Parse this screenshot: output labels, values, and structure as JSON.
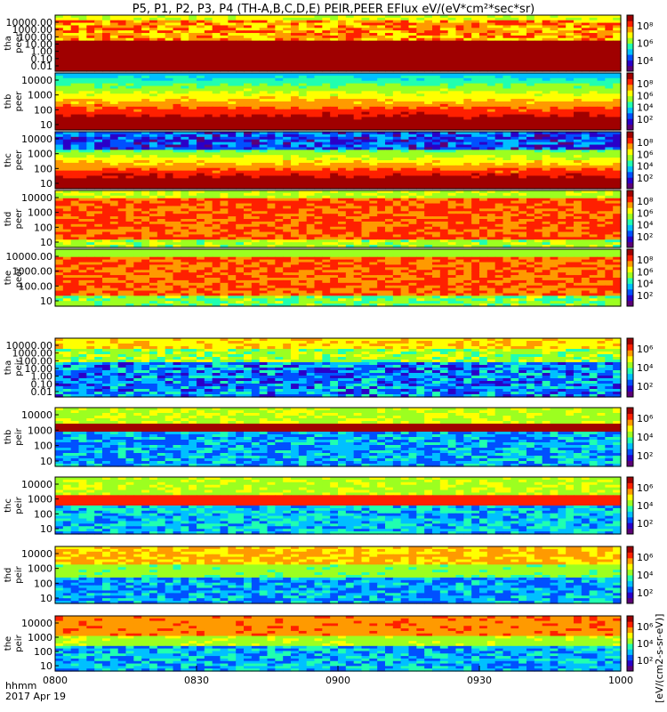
{
  "title": "P5, P1, P2, P3, P4 (TH-A,B,C,D,E) PEIR,PEER EFlux eV/(eV*cm²*sec*sr)",
  "footer": {
    "x_caption_line1": "hhmm",
    "x_caption_line2": "2017 Apr 19"
  },
  "colorbar_unit": "[eV/(cm2-s-sr-eV)]",
  "chart_data": {
    "type": "heatmap",
    "x_axis": {
      "range": [
        "0800",
        "1000"
      ],
      "tick_labels": [
        "0800",
        "0830",
        "0900",
        "0930",
        "1000"
      ]
    },
    "colormap": [
      "#5b0077",
      "#2a00c8",
      "#0050ff",
      "#00c0ff",
      "#20ffb0",
      "#9cff20",
      "#ffff00",
      "#ff9a00",
      "#ff2000",
      "#a00000"
    ],
    "panels": [
      {
        "ylabel": "tha peer",
        "yticks": [
          "10000.00",
          "1000.00",
          "100.00",
          "10.00",
          "1.00",
          "0.10",
          "0.01"
        ],
        "cbar_ticks": [
          "10⁸",
          "10⁶",
          "10⁴"
        ],
        "style": "tha_peer"
      },
      {
        "ylabel": "thb peer",
        "yticks": [
          "10000",
          "1000",
          "100",
          "10"
        ],
        "cbar_ticks": [
          "10⁸",
          "10⁶",
          "10⁴",
          "10²"
        ],
        "style": "thb_peer"
      },
      {
        "ylabel": "thc peer",
        "yticks": [
          "10000",
          "1000",
          "100",
          "10"
        ],
        "cbar_ticks": [
          "10⁸",
          "10⁶",
          "10⁴",
          "10²"
        ],
        "style": "thc_peer"
      },
      {
        "ylabel": "thd peer",
        "yticks": [
          "10000",
          "1000",
          "100",
          "10"
        ],
        "cbar_ticks": [
          "10⁸",
          "10⁶",
          "10⁴",
          "10²"
        ],
        "style": "thd_peer"
      },
      {
        "ylabel": "the peer",
        "yticks": [
          "10000.00",
          "1000.00",
          "100.00",
          "10"
        ],
        "cbar_ticks": [
          "10⁸",
          "10⁶",
          "10⁴",
          "10²"
        ],
        "style": "the_peer"
      },
      {
        "ylabel": "tha peir",
        "yticks": [
          "10000.00",
          "1000.00",
          "100.00",
          "10.00",
          "1.00",
          "0.10",
          "0.01"
        ],
        "cbar_ticks": [
          "10⁶",
          "10⁴",
          "10²"
        ],
        "style": "tha_peir"
      },
      {
        "ylabel": "thb peir",
        "yticks": [
          "10000",
          "1000",
          "100",
          "10"
        ],
        "cbar_ticks": [
          "10⁶",
          "10⁴",
          "10²"
        ],
        "style": "thb_peir"
      },
      {
        "ylabel": "thc peir",
        "yticks": [
          "10000",
          "1000",
          "100",
          "10"
        ],
        "cbar_ticks": [
          "10⁶",
          "10⁴",
          "10²"
        ],
        "style": "thc_peir"
      },
      {
        "ylabel": "thd peir",
        "yticks": [
          "10000",
          "1000",
          "100",
          "10"
        ],
        "cbar_ticks": [
          "10⁶",
          "10⁴",
          "10²"
        ],
        "style": "thd_peir"
      },
      {
        "ylabel": "the peir",
        "yticks": [
          "10000",
          "1000",
          "100",
          "10"
        ],
        "cbar_ticks": [
          "10⁶",
          "10⁴",
          "10²"
        ],
        "style": "the_peir"
      }
    ]
  }
}
